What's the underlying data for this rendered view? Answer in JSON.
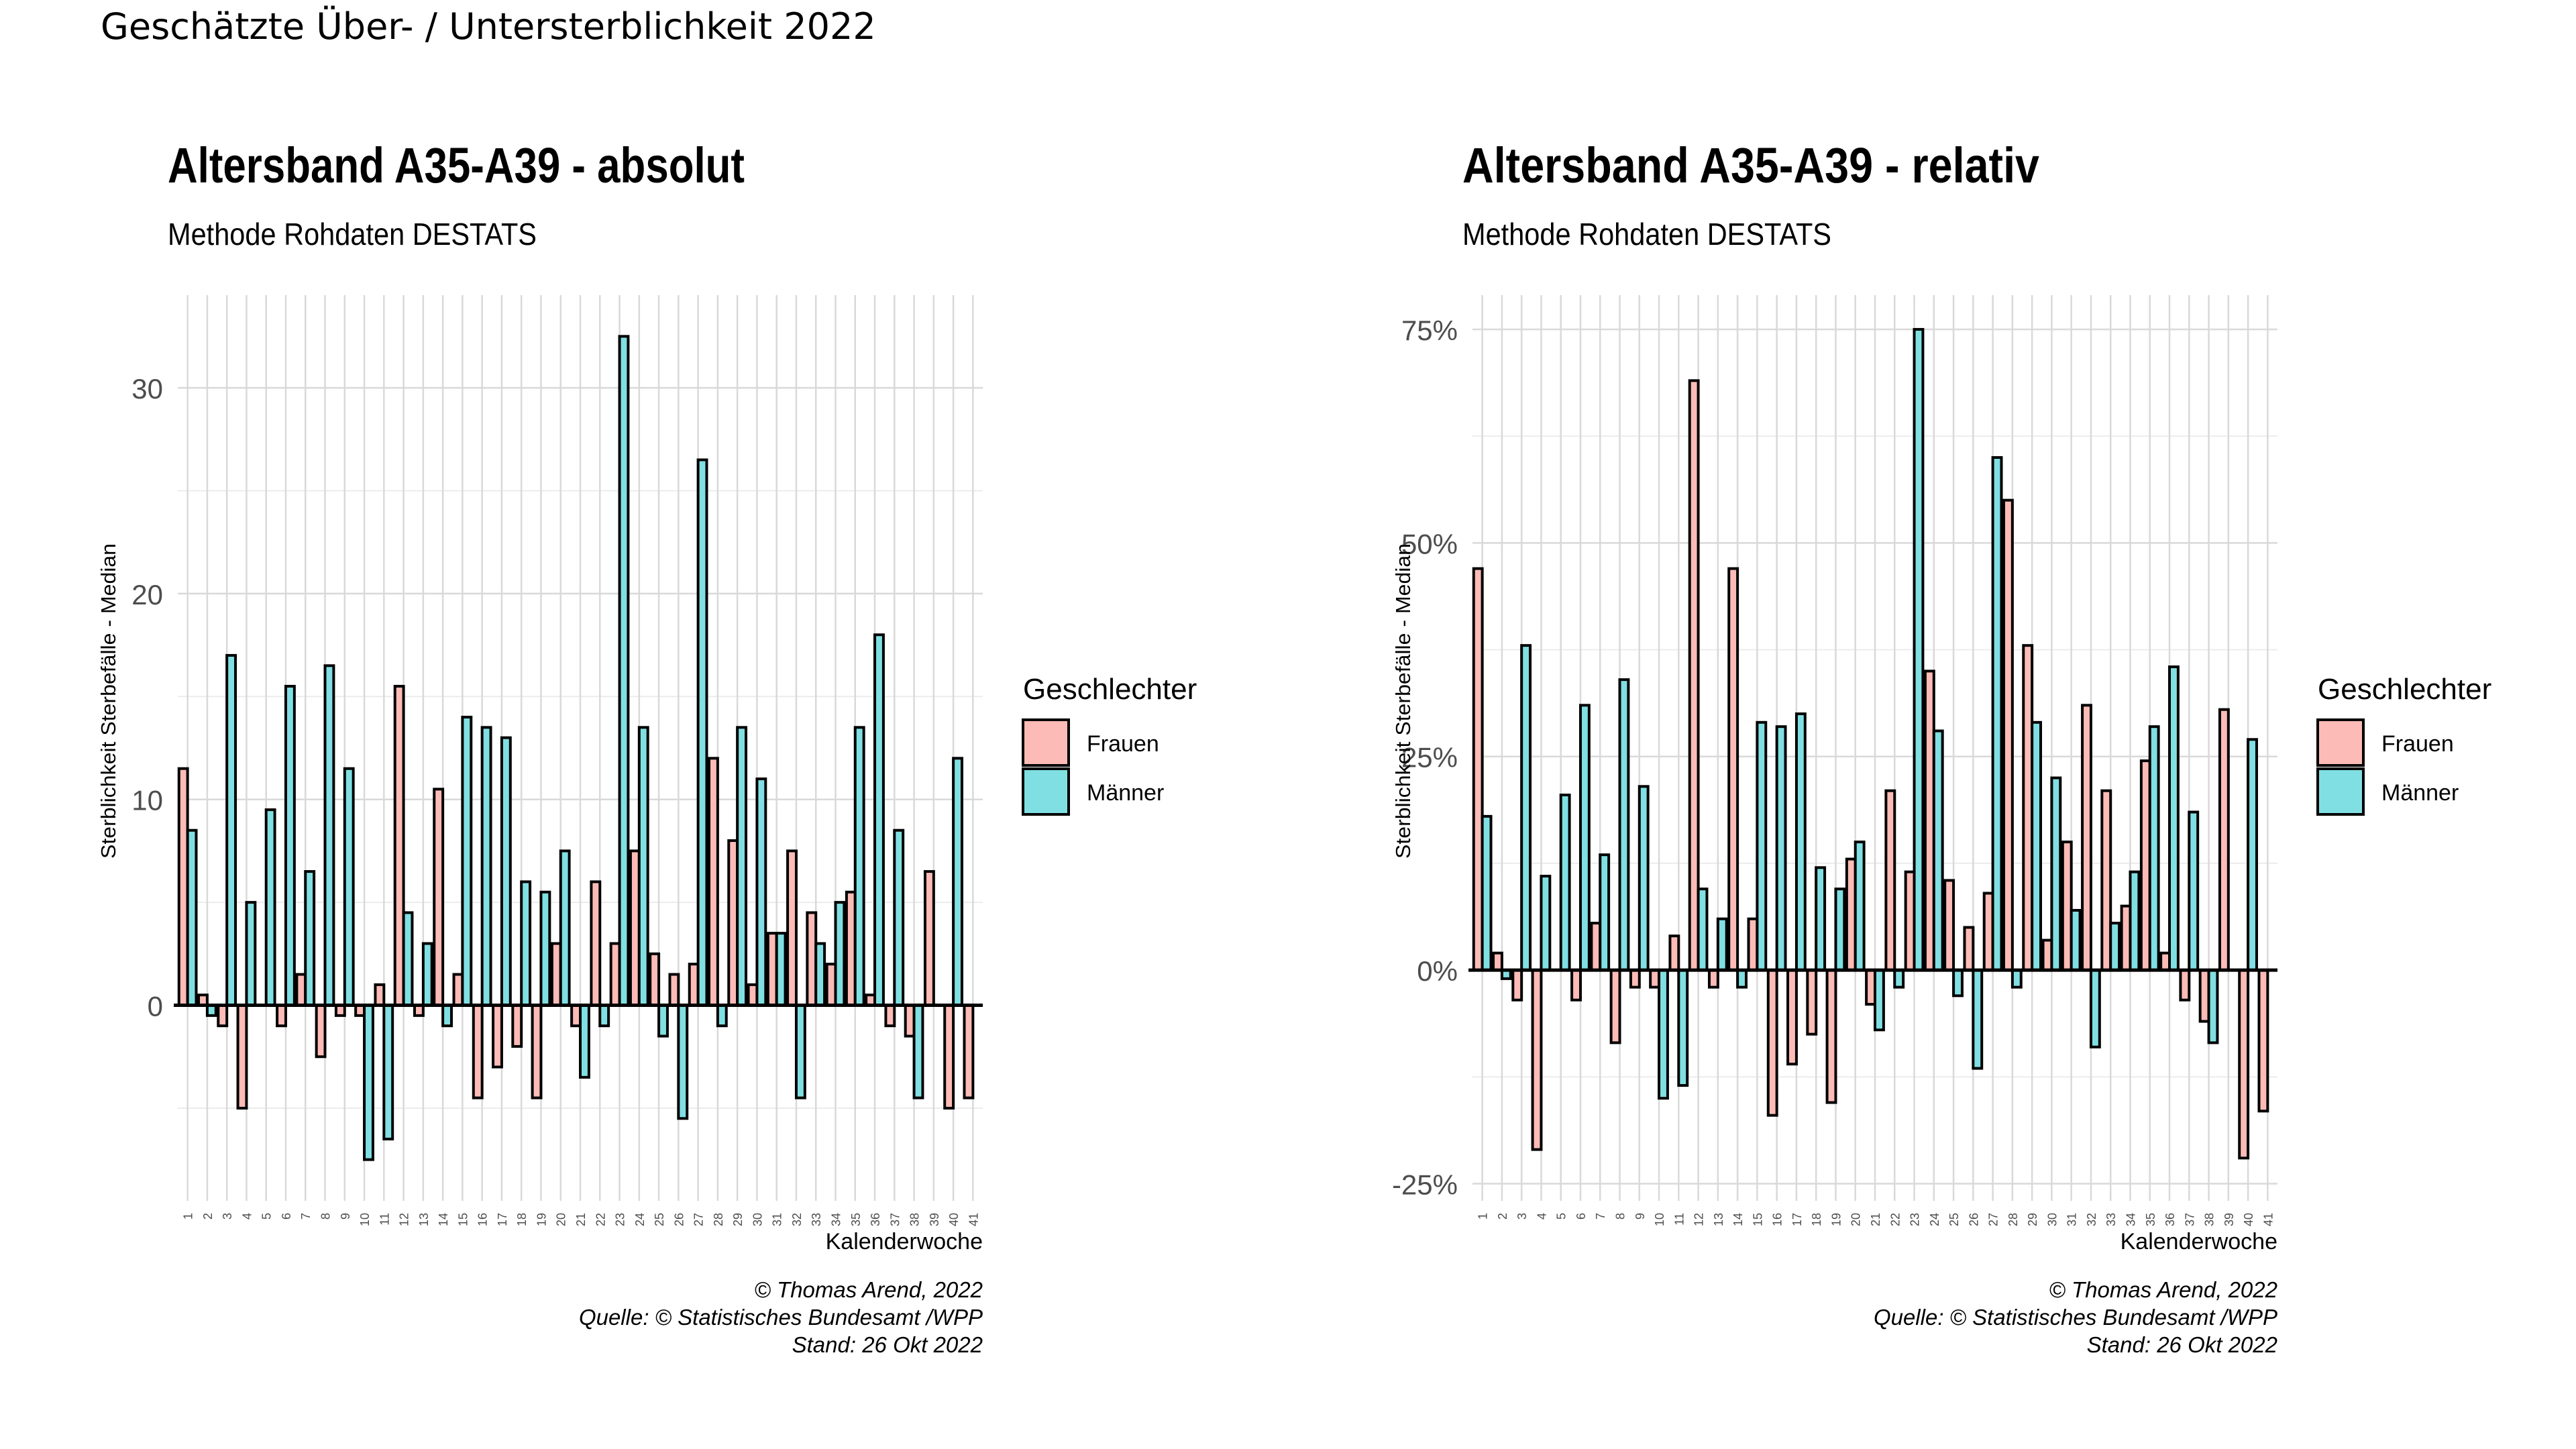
{
  "figure": {
    "title": "Geschätzte Über- / Untersterblichkeit 2022"
  },
  "chart_data": [
    {
      "type": "bar",
      "title": "Altersband A35-A39 - absolut",
      "subtitle": "Methode Rohdaten DESTATS",
      "xlabel": "Kalenderwoche",
      "ylabel": "Sterblichkeit Sterbefälle - Median",
      "ylim": [
        -9.5,
        34.5
      ],
      "yticks": [
        0,
        10,
        20,
        30
      ],
      "ytick_labels": [
        "0",
        "10",
        "20",
        "30"
      ],
      "grid": true,
      "legend": {
        "title": "Geschlechter",
        "position": "right"
      },
      "caption": [
        "© Thomas Arend, 2022",
        "Quelle: © Statistisches Bundesamt /WPP",
        "Stand: 26 Okt 2022"
      ],
      "categories": [
        "1",
        "2",
        "3",
        "4",
        "5",
        "6",
        "7",
        "8",
        "9",
        "10",
        "11",
        "12",
        "13",
        "14",
        "15",
        "16",
        "17",
        "18",
        "19",
        "20",
        "21",
        "22",
        "23",
        "24",
        "25",
        "26",
        "27",
        "28",
        "29",
        "30",
        "31",
        "32",
        "33",
        "34",
        "35",
        "36",
        "37",
        "38",
        "39",
        "40",
        "41"
      ],
      "series": [
        {
          "name": "Frauen",
          "color": "#F8766D",
          "values": [
            11.5,
            0.5,
            -1,
            -5,
            0,
            -1,
            1.5,
            -2.5,
            -0.5,
            -0.5,
            1,
            15.5,
            -0.5,
            10.5,
            1.5,
            -4.5,
            -3,
            -2,
            -4.5,
            3,
            -1,
            6,
            3,
            7.5,
            2.5,
            1.5,
            2,
            12,
            8,
            1,
            3.5,
            7.5,
            4.5,
            2,
            5.5,
            0.5,
            -1,
            -1.5,
            6.5,
            -5,
            -4.5
          ]
        },
        {
          "name": "Männer",
          "color": "#00BFC4",
          "values": [
            8.5,
            -0.5,
            17,
            5,
            9.5,
            15.5,
            6.5,
            16.5,
            11.5,
            -7.5,
            -6.5,
            4.5,
            3,
            -1,
            14,
            13.5,
            13,
            6,
            5.5,
            7.5,
            -3.5,
            -1,
            32.5,
            13.5,
            -1.5,
            -5.5,
            26.5,
            -1,
            13.5,
            11,
            3.5,
            -4.5,
            3,
            5,
            13.5,
            18,
            8.5,
            -4.5,
            0,
            12,
            0
          ]
        }
      ]
    },
    {
      "type": "bar",
      "title": "Altersband A35-A39 - relativ",
      "subtitle": "Methode Rohdaten DESTATS",
      "xlabel": "Kalenderwoche",
      "ylabel": "Sterblichkeit Sterbefälle - Median",
      "ylim": [
        -27,
        79
      ],
      "yticks": [
        -25,
        0,
        25,
        50,
        75
      ],
      "ytick_labels": [
        "-25%",
        "0%",
        "25%",
        "50%",
        "75%"
      ],
      "grid": true,
      "legend": {
        "title": "Geschlechter",
        "position": "right"
      },
      "caption": [
        "© Thomas Arend, 2022",
        "Quelle: © Statistisches Bundesamt /WPP",
        "Stand: 26 Okt 2022"
      ],
      "categories": [
        "1",
        "2",
        "3",
        "4",
        "5",
        "6",
        "7",
        "8",
        "9",
        "10",
        "11",
        "12",
        "13",
        "14",
        "15",
        "16",
        "17",
        "18",
        "19",
        "20",
        "21",
        "22",
        "23",
        "24",
        "25",
        "26",
        "27",
        "28",
        "29",
        "30",
        "31",
        "32",
        "33",
        "34",
        "35",
        "36",
        "37",
        "38",
        "39",
        "40",
        "41"
      ],
      "series": [
        {
          "name": "Frauen",
          "color": "#F8766D",
          "values": [
            47,
            2,
            -3.5,
            -21,
            0,
            -3.5,
            5.5,
            -8.5,
            -2,
            -2,
            4,
            69,
            -2,
            47,
            6,
            -17,
            -11,
            -7.5,
            -15.5,
            13,
            -4,
            21,
            11.5,
            35,
            10.5,
            5,
            9,
            55,
            38,
            3.5,
            15,
            31,
            21,
            7.5,
            24.5,
            2,
            -3.5,
            -6,
            30.5,
            -22,
            -16.5
          ]
        },
        {
          "name": "Männer",
          "color": "#00BFC4",
          "values": [
            18,
            -1,
            38,
            11,
            20.5,
            31,
            13.5,
            34,
            21.5,
            -15,
            -13.5,
            9.5,
            6,
            -2,
            29,
            28.5,
            30,
            12,
            9.5,
            15,
            -7,
            -2,
            75,
            28,
            -3,
            -11.5,
            60,
            -2,
            29,
            22.5,
            7,
            -9,
            5.5,
            11.5,
            28.5,
            35.5,
            18.5,
            -8.5,
            0,
            27,
            0
          ]
        }
      ]
    }
  ]
}
